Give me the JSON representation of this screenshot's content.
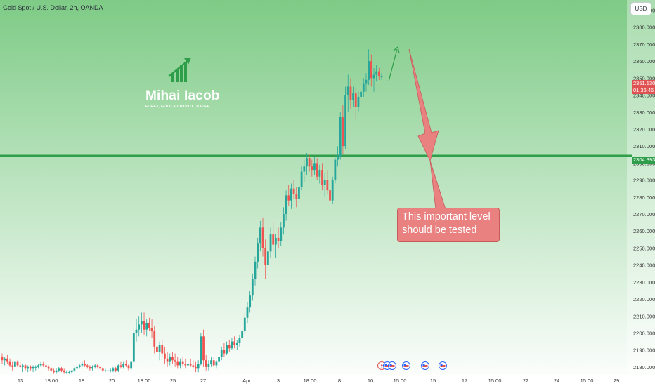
{
  "header": {
    "symbol_title": "Gold Spot / U.S. Dollar, 2h, OANDA",
    "currency": "USD"
  },
  "logo": {
    "name": "Mihai Iacob",
    "tagline": "FOREX, GOLD & CRYPTO TRADER",
    "icon": "rising-bars-arrow-icon",
    "color": "#2e9e4a"
  },
  "annotation": {
    "line1": "This important level",
    "line2": "should be tested",
    "fill_color": "#e98181",
    "arrow": "big-down-arrow-icon",
    "up_arrow": "thin-up-arrow-icon"
  },
  "price_labels": {
    "current_price": "2351.130",
    "countdown": "01:36:46",
    "level_price": "2304.393",
    "current_color": "#e05252",
    "level_color": "#2e9e4a"
  },
  "events": [
    {
      "icon": "lightning-icon",
      "label": "⚡"
    },
    {
      "icon": "us-flag-icon",
      "label": "🇺🇸"
    },
    {
      "icon": "us-flag-icon",
      "label": "🇺🇸"
    },
    {
      "icon": "us-flag-icon",
      "label": "🇺🇸"
    },
    {
      "icon": "us-flag-icon",
      "label": "🇺🇸"
    },
    {
      "icon": "us-flag-icon",
      "label": "🇺🇸"
    }
  ],
  "chart_data": {
    "type": "candlestick",
    "title": "Gold Spot / U.S. Dollar, 2h, OANDA",
    "ylim": [
      2175,
      2396
    ],
    "y_ticks": [
      "2180.000",
      "2190.000",
      "2200.000",
      "2210.000",
      "2220.000",
      "2230.000",
      "2240.000",
      "2250.000",
      "2260.000",
      "2270.000",
      "2280.000",
      "2290.000",
      "2300.000",
      "2310.000",
      "2320.000",
      "2330.000",
      "2340.000",
      "2350.000",
      "2360.000",
      "2370.000",
      "2380.000",
      "2390.000"
    ],
    "x_ticks": [
      "13",
      "18:00",
      "18",
      "20",
      "18:00",
      "25",
      "27",
      "Apr",
      "3",
      "18:00",
      "8",
      "10",
      "15:00",
      "15",
      "17",
      "15:00",
      "22",
      "24",
      "15:00",
      "29"
    ],
    "grid": false,
    "horizontal_level": 2304.393,
    "current_price": 2351.13,
    "bull_color": "#26a69a",
    "bear_color": "#ef5350",
    "background_gradient": [
      "#7ecb86",
      "#ffffff"
    ],
    "candles": [
      [
        2186,
        2188,
        2182,
        2184
      ],
      [
        2184,
        2186,
        2181,
        2185
      ],
      [
        2185,
        2187,
        2182,
        2183
      ],
      [
        2183,
        2185,
        2180,
        2181
      ],
      [
        2181,
        2183,
        2178,
        2180
      ],
      [
        2180,
        2184,
        2178,
        2183
      ],
      [
        2183,
        2184,
        2180,
        2181
      ],
      [
        2181,
        2183,
        2179,
        2180
      ],
      [
        2180,
        2182,
        2177,
        2181
      ],
      [
        2181,
        2182,
        2178,
        2179
      ],
      [
        2179,
        2181,
        2177,
        2180
      ],
      [
        2180,
        2181,
        2178,
        2179
      ],
      [
        2179,
        2181,
        2177,
        2180
      ],
      [
        2180,
        2181,
        2178,
        2180
      ],
      [
        2180,
        2182,
        2179,
        2181
      ],
      [
        2181,
        2183,
        2180,
        2182
      ],
      [
        2182,
        2183,
        2180,
        2181
      ],
      [
        2181,
        2182,
        2179,
        2180
      ],
      [
        2180,
        2181,
        2178,
        2179
      ],
      [
        2179,
        2180,
        2177,
        2178
      ],
      [
        2178,
        2179,
        2176,
        2177
      ],
      [
        2177,
        2179,
        2176,
        2178
      ],
      [
        2178,
        2180,
        2177,
        2179
      ],
      [
        2179,
        2180,
        2177,
        2178
      ],
      [
        2178,
        2179,
        2176,
        2177
      ],
      [
        2177,
        2178,
        2176,
        2177
      ],
      [
        2177,
        2178,
        2176,
        2177
      ],
      [
        2177,
        2178,
        2176,
        2178
      ],
      [
        2178,
        2180,
        2177,
        2179
      ],
      [
        2179,
        2181,
        2178,
        2180
      ],
      [
        2180,
        2182,
        2179,
        2181
      ],
      [
        2181,
        2183,
        2180,
        2182
      ],
      [
        2182,
        2184,
        2180,
        2181
      ],
      [
        2181,
        2182,
        2179,
        2180
      ],
      [
        2180,
        2181,
        2178,
        2179
      ],
      [
        2179,
        2181,
        2178,
        2180
      ],
      [
        2180,
        2182,
        2179,
        2181
      ],
      [
        2181,
        2182,
        2179,
        2180
      ],
      [
        2180,
        2181,
        2178,
        2179
      ],
      [
        2179,
        2180,
        2177,
        2178
      ],
      [
        2178,
        2179,
        2177,
        2178
      ],
      [
        2178,
        2179,
        2177,
        2178
      ],
      [
        2178,
        2179,
        2177,
        2178
      ],
      [
        2178,
        2180,
        2177,
        2179
      ],
      [
        2179,
        2180,
        2177,
        2178
      ],
      [
        2178,
        2182,
        2177,
        2181
      ],
      [
        2181,
        2183,
        2179,
        2180
      ],
      [
        2180,
        2183,
        2179,
        2182
      ],
      [
        2182,
        2184,
        2180,
        2181
      ],
      [
        2181,
        2182,
        2178,
        2179
      ],
      [
        2179,
        2184,
        2178,
        2183
      ],
      [
        2183,
        2204,
        2182,
        2200
      ],
      [
        2200,
        2208,
        2195,
        2202
      ],
      [
        2202,
        2210,
        2198,
        2205
      ],
      [
        2205,
        2212,
        2200,
        2207
      ],
      [
        2207,
        2212,
        2199,
        2202
      ],
      [
        2202,
        2208,
        2198,
        2206
      ],
      [
        2206,
        2209,
        2201,
        2203
      ],
      [
        2203,
        2208,
        2197,
        2201
      ],
      [
        2201,
        2204,
        2188,
        2192
      ],
      [
        2192,
        2198,
        2186,
        2189
      ],
      [
        2189,
        2195,
        2184,
        2193
      ],
      [
        2193,
        2196,
        2186,
        2188
      ],
      [
        2188,
        2192,
        2182,
        2185
      ],
      [
        2185,
        2189,
        2180,
        2183
      ],
      [
        2183,
        2188,
        2181,
        2186
      ],
      [
        2186,
        2189,
        2182,
        2184
      ],
      [
        2184,
        2188,
        2180,
        2183
      ],
      [
        2183,
        2186,
        2179,
        2181
      ],
      [
        2181,
        2185,
        2179,
        2183
      ],
      [
        2183,
        2186,
        2180,
        2182
      ],
      [
        2182,
        2185,
        2179,
        2181
      ],
      [
        2181,
        2184,
        2179,
        2182
      ],
      [
        2182,
        2185,
        2180,
        2181
      ],
      [
        2181,
        2184,
        2179,
        2180
      ],
      [
        2180,
        2183,
        2177,
        2179
      ],
      [
        2179,
        2184,
        2177,
        2182
      ],
      [
        2182,
        2200,
        2181,
        2198
      ],
      [
        2198,
        2202,
        2180,
        2184
      ],
      [
        2184,
        2187,
        2178,
        2180
      ],
      [
        2180,
        2184,
        2178,
        2182
      ],
      [
        2182,
        2186,
        2180,
        2184
      ],
      [
        2184,
        2186,
        2180,
        2181
      ],
      [
        2181,
        2184,
        2179,
        2183
      ],
      [
        2183,
        2188,
        2181,
        2186
      ],
      [
        2186,
        2192,
        2184,
        2190
      ],
      [
        2190,
        2194,
        2186,
        2188
      ],
      [
        2188,
        2195,
        2187,
        2193
      ],
      [
        2193,
        2196,
        2189,
        2191
      ],
      [
        2191,
        2197,
        2190,
        2195
      ],
      [
        2195,
        2198,
        2191,
        2193
      ],
      [
        2193,
        2196,
        2190,
        2194
      ],
      [
        2194,
        2199,
        2192,
        2197
      ],
      [
        2197,
        2203,
        2195,
        2201
      ],
      [
        2201,
        2212,
        2199,
        2209
      ],
      [
        2209,
        2218,
        2206,
        2215
      ],
      [
        2215,
        2225,
        2212,
        2222
      ],
      [
        2222,
        2235,
        2219,
        2232
      ],
      [
        2232,
        2245,
        2228,
        2242
      ],
      [
        2242,
        2256,
        2238,
        2253
      ],
      [
        2253,
        2266,
        2248,
        2262
      ],
      [
        2262,
        2268,
        2245,
        2250
      ],
      [
        2250,
        2255,
        2232,
        2240
      ],
      [
        2240,
        2252,
        2236,
        2248
      ],
      [
        2248,
        2262,
        2244,
        2258
      ],
      [
        2258,
        2265,
        2248,
        2252
      ],
      [
        2252,
        2258,
        2244,
        2256
      ],
      [
        2256,
        2262,
        2250,
        2254
      ],
      [
        2254,
        2265,
        2251,
        2262
      ],
      [
        2262,
        2274,
        2258,
        2270
      ],
      [
        2270,
        2284,
        2266,
        2281
      ],
      [
        2281,
        2287,
        2275,
        2278
      ],
      [
        2278,
        2288,
        2273,
        2285
      ],
      [
        2285,
        2290,
        2279,
        2282
      ],
      [
        2282,
        2286,
        2274,
        2279
      ],
      [
        2279,
        2288,
        2277,
        2286
      ],
      [
        2286,
        2298,
        2284,
        2295
      ],
      [
        2295,
        2302,
        2289,
        2298
      ],
      [
        2298,
        2306,
        2293,
        2303
      ],
      [
        2303,
        2305,
        2295,
        2298
      ],
      [
        2298,
        2302,
        2292,
        2296
      ],
      [
        2296,
        2304,
        2293,
        2300
      ],
      [
        2300,
        2303,
        2290,
        2292
      ],
      [
        2292,
        2299,
        2288,
        2296
      ],
      [
        2296,
        2300,
        2284,
        2287
      ],
      [
        2287,
        2294,
        2280,
        2290
      ],
      [
        2290,
        2296,
        2282,
        2284
      ],
      [
        2284,
        2290,
        2270,
        2278
      ],
      [
        2278,
        2292,
        2276,
        2290
      ],
      [
        2290,
        2305,
        2288,
        2302
      ],
      [
        2302,
        2310,
        2298,
        2304
      ],
      [
        2304,
        2330,
        2302,
        2327
      ],
      [
        2327,
        2334,
        2305,
        2310
      ],
      [
        2310,
        2345,
        2308,
        2340
      ],
      [
        2340,
        2352,
        2330,
        2345
      ],
      [
        2345,
        2350,
        2332,
        2337
      ],
      [
        2337,
        2345,
        2333,
        2341
      ],
      [
        2341,
        2344,
        2326,
        2333
      ],
      [
        2333,
        2342,
        2330,
        2339
      ],
      [
        2339,
        2345,
        2335,
        2342
      ],
      [
        2342,
        2350,
        2339,
        2347
      ],
      [
        2347,
        2353,
        2342,
        2349
      ],
      [
        2349,
        2367,
        2346,
        2360
      ],
      [
        2360,
        2364,
        2345,
        2350
      ],
      [
        2350,
        2356,
        2342,
        2352
      ],
      [
        2352,
        2358,
        2348,
        2354
      ],
      [
        2354,
        2356,
        2349,
        2351
      ],
      [
        2351,
        2353,
        2349,
        2351
      ]
    ]
  }
}
